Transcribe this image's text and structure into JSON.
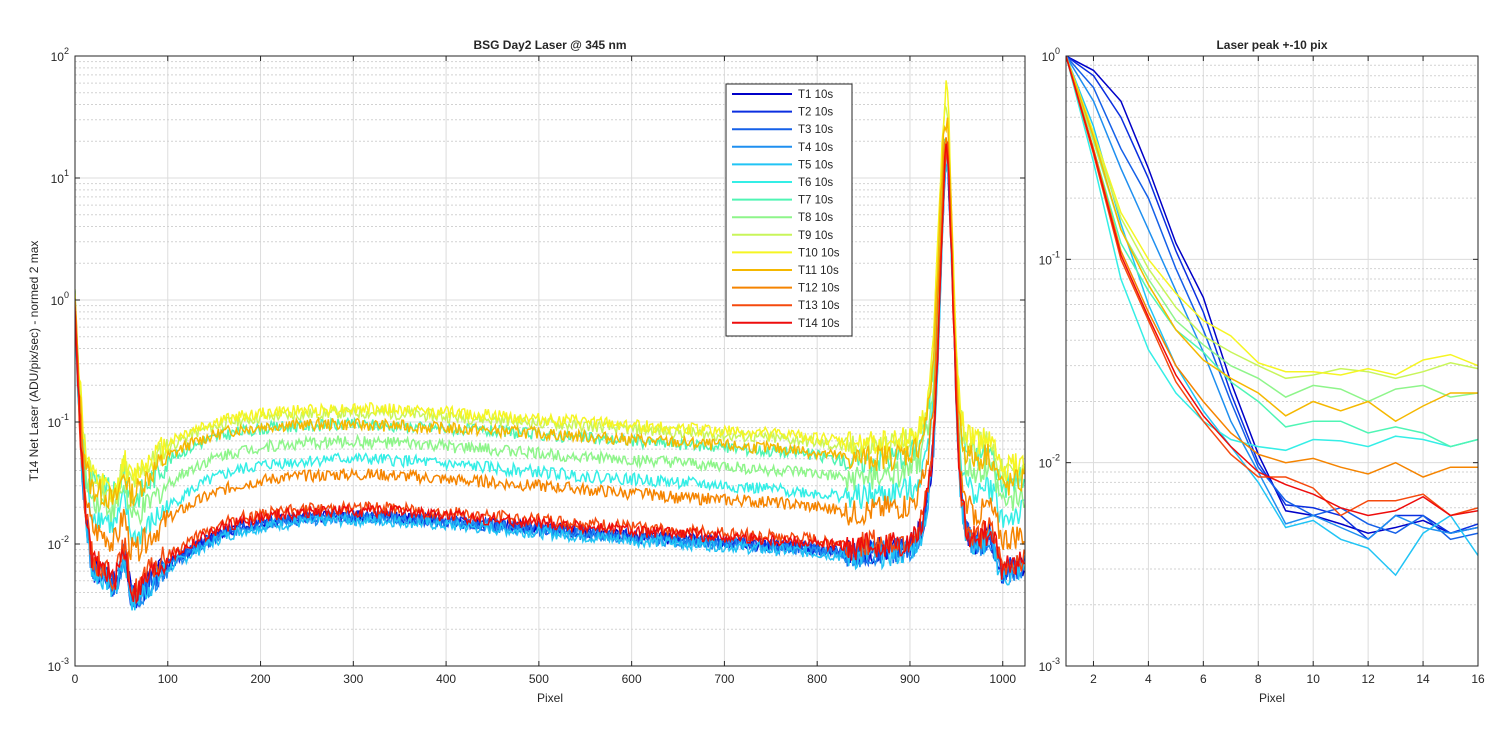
{
  "colors": {
    "T1 10s": "#0000c8",
    "T2 10s": "#0b2fe0",
    "T3 10s": "#1560e8",
    "T4 10s": "#1f8ff0",
    "T5 10s": "#21c4f5",
    "T6 10s": "#34eee6",
    "T7 10s": "#4ff5b4",
    "T8 10s": "#8ef58a",
    "T9 10s": "#c8f55a",
    "T10 10s": "#f5f523",
    "T11 10s": "#f5b800",
    "T12 10s": "#f58400",
    "T13 10s": "#f54a0e",
    "T14 10s": "#ee0c0c"
  },
  "chart_data": [
    {
      "type": "line",
      "title": "BSG  Day2 Laser @ 345 nm",
      "xlabel": "Pixel",
      "ylabel": "T14 Net Laser (ADU/pix/sec) - normed 2 max",
      "xlim": [
        0,
        1024
      ],
      "ylim": [
        0.001,
        100
      ],
      "yscale": "log",
      "grid": true,
      "minor_grid": true,
      "legend_position": "top-center",
      "xticks": [
        0,
        100,
        200,
        300,
        400,
        500,
        600,
        700,
        800,
        900,
        1000
      ],
      "xtick_labels": [
        "0",
        "100",
        "200",
        "300",
        "400",
        "500",
        "600",
        "700",
        "800",
        "900",
        "1000"
      ],
      "yticks": [
        0.001,
        0.01,
        0.1,
        1,
        10,
        100
      ],
      "ytick_labels": [
        {
          "base": "10",
          "exp": "-3"
        },
        {
          "base": "10",
          "exp": "-2"
        },
        {
          "base": "10",
          "exp": "-1"
        },
        {
          "base": "10",
          "exp": "0"
        },
        {
          "base": "10",
          "exp": "1"
        },
        {
          "base": "10",
          "exp": "2"
        }
      ],
      "profile_x": [
        0,
        2,
        4,
        6,
        8,
        12,
        16,
        20,
        25,
        30,
        35,
        40,
        45,
        50,
        53,
        56,
        60,
        65,
        70,
        80,
        90,
        100,
        120,
        140,
        160,
        180,
        200,
        220,
        250,
        280,
        300,
        330,
        360,
        400,
        450,
        500,
        550,
        600,
        650,
        700,
        750,
        780,
        800,
        820,
        840,
        860,
        880,
        900,
        910,
        915,
        920,
        925,
        928,
        931,
        934,
        937,
        940,
        943,
        946,
        949,
        952,
        955,
        960,
        965,
        970,
        975,
        980,
        984,
        988,
        992,
        996,
        1000,
        1005,
        1010,
        1015,
        1020,
        1024
      ],
      "series": [
        {
          "name": "T1 10s",
          "peak": 20,
          "spread": 0.55,
          "profile": [
            1.0,
            0.35,
            0.15,
            0.075,
            0.038,
            0.016,
            0.0085,
            0.0062,
            0.006,
            0.0058,
            0.0055,
            0.0045,
            0.005,
            0.007,
            0.0085,
            0.0065,
            0.004,
            0.0035,
            0.004,
            0.005,
            0.0058,
            0.0068,
            0.0085,
            0.0105,
            0.0125,
            0.014,
            0.015,
            0.0158,
            0.0165,
            0.017,
            0.017,
            0.017,
            0.0165,
            0.0155,
            0.0145,
            0.0135,
            0.0125,
            0.0117,
            0.011,
            0.0105,
            0.0098,
            0.0095,
            0.0092,
            0.0088,
            0.0085,
            0.0088,
            0.009,
            0.0095,
            0.012,
            0.016,
            0.025,
            0.06,
            0.15,
            0.6,
            2.5,
            10,
            20,
            6,
            1.2,
            0.25,
            0.06,
            0.025,
            0.014,
            0.011,
            0.0105,
            0.0105,
            0.011,
            0.012,
            0.011,
            0.009,
            0.007,
            0.0055,
            0.006,
            0.0062,
            0.0065,
            0.0068,
            0.007
          ]
        },
        {
          "name": "T2 10s",
          "peak": 18,
          "spread": 0.5
        },
        {
          "name": "T3 10s",
          "peak": 17,
          "spread": 0.55
        },
        {
          "name": "T4 10s",
          "peak": 16,
          "spread": 0.58
        },
        {
          "name": "T5 10s",
          "peak": 15,
          "spread": 0.62
        },
        {
          "name": "T6 10s",
          "peak": 20,
          "spread": 0.6,
          "profile": [
            1.0,
            0.4,
            0.2,
            0.1,
            0.06,
            0.03,
            0.02,
            0.0175,
            0.017,
            0.0165,
            0.016,
            0.014,
            0.015,
            0.02,
            0.024,
            0.018,
            0.012,
            0.011,
            0.012,
            0.014,
            0.017,
            0.02,
            0.026,
            0.032,
            0.037,
            0.041,
            0.044,
            0.046,
            0.048,
            0.05,
            0.05,
            0.049,
            0.048,
            0.045,
            0.042,
            0.039,
            0.036,
            0.034,
            0.032,
            0.03,
            0.028,
            0.027,
            0.026,
            0.025,
            0.024,
            0.025,
            0.026,
            0.028,
            0.034,
            0.045,
            0.07,
            0.16,
            0.4,
            1.5,
            5,
            14,
            20,
            7,
            1.5,
            0.3,
            0.1,
            0.05,
            0.032,
            0.028,
            0.027,
            0.027,
            0.028,
            0.03,
            0.028,
            0.024,
            0.019,
            0.016,
            0.016,
            0.017,
            0.017,
            0.018,
            0.018
          ]
        },
        {
          "name": "T7 10s",
          "peak": 22,
          "spread": 0.6,
          "profile": [
            1.0,
            0.45,
            0.25,
            0.14,
            0.09,
            0.05,
            0.035,
            0.031,
            0.03,
            0.029,
            0.028,
            0.025,
            0.027,
            0.036,
            0.042,
            0.032,
            0.024,
            0.023,
            0.026,
            0.032,
            0.04,
            0.048,
            0.06,
            0.07,
            0.078,
            0.084,
            0.088,
            0.091,
            0.093,
            0.095,
            0.095,
            0.094,
            0.092,
            0.088,
            0.084,
            0.079,
            0.074,
            0.07,
            0.066,
            0.062,
            0.058,
            0.056,
            0.053,
            0.05,
            0.047,
            0.049,
            0.051,
            0.055,
            0.065,
            0.085,
            0.13,
            0.3,
            0.8,
            2.5,
            8,
            20,
            22,
            8,
            2,
            0.45,
            0.16,
            0.085,
            0.06,
            0.055,
            0.054,
            0.054,
            0.056,
            0.06,
            0.055,
            0.045,
            0.036,
            0.03,
            0.031,
            0.032,
            0.033,
            0.034,
            0.034
          ]
        },
        {
          "name": "T8 10s",
          "peak": 24,
          "spread": 0.6
        },
        {
          "name": "T9 10s",
          "peak": 28,
          "spread": 0.6
        },
        {
          "name": "T10 10s",
          "peak": 65,
          "spread": 0.6,
          "profile": [
            1.0,
            0.5,
            0.3,
            0.18,
            0.1,
            0.055,
            0.04,
            0.034,
            0.032,
            0.03,
            0.028,
            0.024,
            0.027,
            0.04,
            0.05,
            0.04,
            0.035,
            0.036,
            0.042,
            0.05,
            0.058,
            0.068,
            0.082,
            0.094,
            0.104,
            0.112,
            0.117,
            0.121,
            0.125,
            0.128,
            0.129,
            0.128,
            0.125,
            0.12,
            0.113,
            0.106,
            0.1,
            0.094,
            0.089,
            0.084,
            0.08,
            0.077,
            0.074,
            0.07,
            0.066,
            0.068,
            0.07,
            0.075,
            0.085,
            0.11,
            0.17,
            0.4,
            1.2,
            4,
            14,
            45,
            65,
            18,
            3.5,
            0.7,
            0.22,
            0.11,
            0.078,
            0.072,
            0.07,
            0.07,
            0.073,
            0.078,
            0.07,
            0.058,
            0.047,
            0.04,
            0.041,
            0.043,
            0.045,
            0.046,
            0.047
          ]
        },
        {
          "name": "T11 10s",
          "peak": 30,
          "spread": 0.6,
          "profile": [
            1.0,
            0.45,
            0.24,
            0.13,
            0.08,
            0.045,
            0.032,
            0.028,
            0.027,
            0.026,
            0.025,
            0.022,
            0.024,
            0.033,
            0.04,
            0.031,
            0.026,
            0.026,
            0.03,
            0.037,
            0.044,
            0.052,
            0.064,
            0.074,
            0.082,
            0.088,
            0.092,
            0.094,
            0.095,
            0.096,
            0.095,
            0.094,
            0.092,
            0.089,
            0.085,
            0.081,
            0.076,
            0.072,
            0.068,
            0.064,
            0.061,
            0.059,
            0.056,
            0.053,
            0.05,
            0.051,
            0.052,
            0.056,
            0.065,
            0.085,
            0.13,
            0.3,
            0.8,
            2.5,
            9,
            25,
            30,
            10,
            2.2,
            0.45,
            0.15,
            0.08,
            0.057,
            0.052,
            0.05,
            0.05,
            0.052,
            0.056,
            0.05,
            0.042,
            0.034,
            0.029,
            0.03,
            0.031,
            0.032,
            0.033,
            0.034
          ]
        },
        {
          "name": "T12 10s",
          "peak": 22,
          "spread": 0.6,
          "profile": [
            1.0,
            0.4,
            0.18,
            0.09,
            0.05,
            0.025,
            0.016,
            0.013,
            0.0125,
            0.012,
            0.0115,
            0.01,
            0.011,
            0.015,
            0.018,
            0.013,
            0.009,
            0.0085,
            0.0095,
            0.0115,
            0.0135,
            0.016,
            0.02,
            0.024,
            0.028,
            0.031,
            0.033,
            0.035,
            0.036,
            0.037,
            0.037,
            0.037,
            0.036,
            0.034,
            0.032,
            0.03,
            0.028,
            0.026,
            0.024,
            0.023,
            0.022,
            0.021,
            0.02,
            0.019,
            0.018,
            0.019,
            0.02,
            0.021,
            0.026,
            0.035,
            0.055,
            0.13,
            0.35,
            1.3,
            4.5,
            14,
            22,
            7,
            1.5,
            0.3,
            0.08,
            0.035,
            0.022,
            0.019,
            0.018,
            0.018,
            0.019,
            0.021,
            0.019,
            0.016,
            0.013,
            0.011,
            0.0112,
            0.0115,
            0.0118,
            0.012,
            0.012
          ]
        },
        {
          "name": "T13 10s",
          "peak": 19,
          "spread": 0.55
        },
        {
          "name": "T14 10s",
          "peak": 18,
          "spread": 0.55
        }
      ]
    },
    {
      "type": "line",
      "title": "Laser peak +-10 pix",
      "xlabel": "Pixel",
      "ylabel": "",
      "xlim": [
        1,
        16
      ],
      "ylim": [
        0.001,
        1
      ],
      "yscale": "log",
      "grid": true,
      "minor_grid": true,
      "xticks": [
        2,
        4,
        6,
        8,
        10,
        12,
        14,
        16
      ],
      "xtick_labels": [
        "2",
        "4",
        "6",
        "8",
        "10",
        "12",
        "14",
        "16"
      ],
      "yticks": [
        0.001,
        0.01,
        0.1,
        1
      ],
      "ytick_labels": [
        {
          "base": "10",
          "exp": "-3"
        },
        {
          "base": "10",
          "exp": "-2"
        },
        {
          "base": "10",
          "exp": "-1"
        },
        {
          "base": "10",
          "exp": "0"
        }
      ],
      "x": [
        1,
        2,
        3,
        4,
        5,
        6,
        7,
        8,
        9,
        10,
        11,
        12,
        13,
        14,
        15,
        16
      ],
      "series": [
        {
          "name": "T1 10s",
          "values": [
            1.0,
            0.85,
            0.6,
            0.28,
            0.12,
            0.065,
            0.025,
            0.011,
            0.0058,
            0.0055,
            0.005,
            0.0045,
            0.0048,
            0.0052,
            0.0045,
            0.0048
          ]
        },
        {
          "name": "T2 10s",
          "values": [
            1.0,
            0.8,
            0.5,
            0.25,
            0.11,
            0.055,
            0.022,
            0.01,
            0.0062,
            0.006,
            0.0055,
            0.0042,
            0.0055,
            0.0055,
            0.0045,
            0.005
          ]
        },
        {
          "name": "T3 10s",
          "values": [
            1.0,
            0.7,
            0.35,
            0.2,
            0.09,
            0.045,
            0.02,
            0.0095,
            0.0065,
            0.0055,
            0.006,
            0.005,
            0.0045,
            0.0055,
            0.0042,
            0.0045
          ]
        },
        {
          "name": "T4 10s",
          "values": [
            1.0,
            0.6,
            0.28,
            0.14,
            0.07,
            0.035,
            0.016,
            0.009,
            0.005,
            0.0055,
            0.0048,
            0.0042,
            0.0055,
            0.0048,
            0.0045,
            0.0048
          ]
        },
        {
          "name": "T5 10s",
          "values": [
            1.0,
            0.45,
            0.15,
            0.06,
            0.03,
            0.018,
            0.012,
            0.008,
            0.0048,
            0.0052,
            0.0042,
            0.0038,
            0.0028,
            0.0045,
            0.0055,
            0.0035
          ]
        },
        {
          "name": "T6 10s",
          "values": [
            1.0,
            0.3,
            0.08,
            0.036,
            0.022,
            0.016,
            0.013,
            0.012,
            0.0115,
            0.013,
            0.0128,
            0.012,
            0.0135,
            0.013,
            0.012,
            0.013
          ]
        },
        {
          "name": "T7 10s",
          "values": [
            1.0,
            0.35,
            0.12,
            0.07,
            0.045,
            0.035,
            0.025,
            0.02,
            0.015,
            0.016,
            0.016,
            0.014,
            0.015,
            0.014,
            0.012,
            0.013
          ]
        },
        {
          "name": "T8 10s",
          "values": [
            1.0,
            0.38,
            0.14,
            0.08,
            0.05,
            0.038,
            0.03,
            0.026,
            0.021,
            0.024,
            0.023,
            0.02,
            0.023,
            0.024,
            0.021,
            0.022
          ]
        },
        {
          "name": "T9 10s",
          "values": [
            1.0,
            0.4,
            0.16,
            0.09,
            0.058,
            0.042,
            0.035,
            0.03,
            0.026,
            0.027,
            0.029,
            0.028,
            0.026,
            0.028,
            0.031,
            0.029
          ]
        },
        {
          "name": "T10 10s",
          "values": [
            1.0,
            0.42,
            0.17,
            0.1,
            0.068,
            0.05,
            0.042,
            0.031,
            0.028,
            0.028,
            0.027,
            0.029,
            0.027,
            0.032,
            0.034,
            0.03
          ]
        },
        {
          "name": "T11 10s",
          "values": [
            1.0,
            0.4,
            0.14,
            0.075,
            0.045,
            0.032,
            0.026,
            0.022,
            0.017,
            0.02,
            0.018,
            0.02,
            0.016,
            0.019,
            0.022,
            0.022
          ]
        },
        {
          "name": "T12 10s",
          "values": [
            1.0,
            0.35,
            0.11,
            0.055,
            0.03,
            0.02,
            0.014,
            0.011,
            0.01,
            0.0105,
            0.0095,
            0.0088,
            0.01,
            0.0085,
            0.0095,
            0.0095
          ]
        },
        {
          "name": "T13 10s",
          "values": [
            1.0,
            0.33,
            0.1,
            0.05,
            0.025,
            0.016,
            0.011,
            0.0085,
            0.0085,
            0.0075,
            0.0055,
            0.0065,
            0.0065,
            0.007,
            0.0055,
            0.006
          ]
        },
        {
          "name": "T14 10s",
          "values": [
            1.0,
            0.34,
            0.105,
            0.052,
            0.027,
            0.017,
            0.012,
            0.009,
            0.0078,
            0.007,
            0.006,
            0.0055,
            0.0058,
            0.0068,
            0.0055,
            0.0058
          ]
        }
      ]
    }
  ]
}
